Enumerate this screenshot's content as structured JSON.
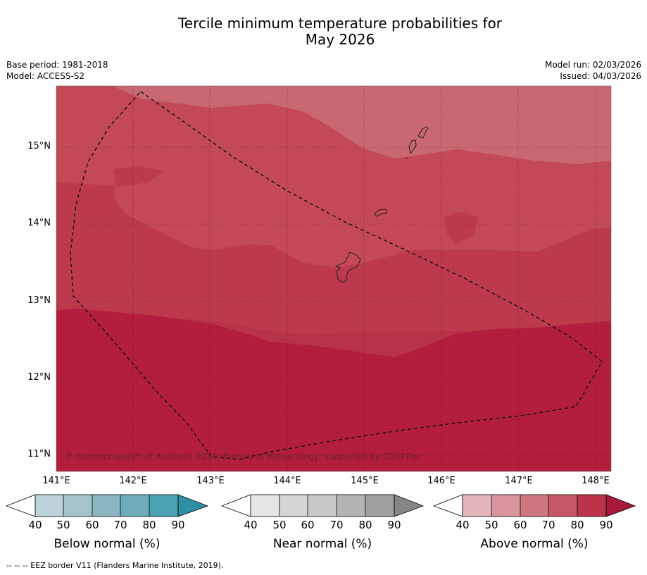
{
  "title_line1": "Tercile minimum temperature probabilities for",
  "title_line2": "May 2026",
  "meta": {
    "base_period": "Base period: 1981-2018",
    "model": "Model: ACCESS-S2",
    "model_run": "Model run: 02/03/2026",
    "issued": "Issued: 04/03/2026"
  },
  "map": {
    "lat_labels": [
      "15°N",
      "14°N",
      "13°N",
      "12°N",
      "11°N"
    ],
    "lon_labels": [
      "141°E",
      "142°E",
      "143°E",
      "144°E",
      "145°E",
      "146°E",
      "147°E",
      "148°E"
    ],
    "copyright": "© Commonwealth of Australia 2026, Bureau of Meteorology, supported by COSPPac",
    "colors": {
      "a60": "#c96871",
      "a70": "#c24955",
      "a80a": "#bd3a4c",
      "a80b": "#b83347",
      "a90": "#b21e3c"
    }
  },
  "legends": [
    {
      "label": "Below normal (%)",
      "ticks": [
        "40",
        "50",
        "60",
        "70",
        "80",
        "90"
      ],
      "colors": [
        "#ffffff",
        "#bcd3da",
        "#a5c4ca",
        "#8ab6c1",
        "#6eacbb",
        "#4aa2b3",
        "#2d8fa3"
      ]
    },
    {
      "label": "Near normal (%)",
      "ticks": [
        "40",
        "50",
        "60",
        "70",
        "80",
        "90"
      ],
      "colors": [
        "#ffffff",
        "#e5e5e5",
        "#d6d6d6",
        "#c8c8c8",
        "#b4b4b4",
        "#a0a0a0",
        "#868686"
      ]
    },
    {
      "label": "Above normal (%)",
      "ticks": [
        "40",
        "50",
        "60",
        "70",
        "80",
        "90"
      ],
      "colors": [
        "#ffffff",
        "#e3b7bd",
        "#d8959d",
        "#cd7880",
        "#c45765",
        "#bb3449",
        "#a8183a"
      ]
    }
  ],
  "footnote": "-- -- -- EEZ border V11 (Flanders Marine Institute, 2019)."
}
